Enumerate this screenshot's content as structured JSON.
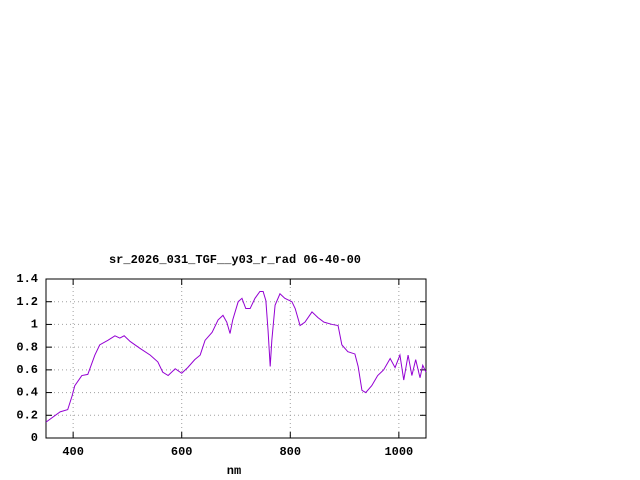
{
  "chart_data": {
    "type": "line",
    "title": "sr_2026_031_TGF__y03_r_rad 06-40-00",
    "x_label": "nm",
    "x": [
      350,
      376,
      390,
      398,
      403,
      416,
      427,
      440,
      449,
      464,
      477,
      486,
      494,
      505,
      523,
      542,
      556,
      565,
      575,
      588,
      600,
      611,
      624,
      634,
      643,
      656,
      667,
      676,
      683,
      689,
      694,
      704,
      711,
      718,
      726,
      735,
      744,
      750,
      755,
      759,
      763,
      766,
      772,
      781,
      790,
      803,
      809,
      818,
      827,
      840,
      851,
      862,
      877,
      888,
      895,
      906,
      919,
      925,
      932,
      939,
      950,
      961,
      972,
      984,
      993,
      1002,
      1009,
      1017,
      1024,
      1031,
      1039,
      1044,
      1050
    ],
    "series": [
      {
        "color": "#9400d3",
        "values": [
          0.14,
          0.23,
          0.25,
          0.37,
          0.46,
          0.55,
          0.56,
          0.73,
          0.82,
          0.86,
          0.9,
          0.88,
          0.9,
          0.85,
          0.79,
          0.73,
          0.67,
          0.58,
          0.55,
          0.61,
          0.57,
          0.62,
          0.69,
          0.73,
          0.86,
          0.93,
          1.04,
          1.08,
          1.02,
          0.92,
          1.04,
          1.2,
          1.23,
          1.14,
          1.14,
          1.23,
          1.29,
          1.29,
          1.21,
          0.95,
          0.63,
          0.86,
          1.17,
          1.27,
          1.23,
          1.2,
          1.14,
          0.99,
          1.02,
          1.11,
          1.06,
          1.02,
          1.0,
          0.99,
          0.82,
          0.76,
          0.74,
          0.63,
          0.42,
          0.4,
          0.46,
          0.55,
          0.6,
          0.7,
          0.62,
          0.73,
          0.51,
          0.73,
          0.55,
          0.69,
          0.53,
          0.64,
          0.58
        ]
      }
    ],
    "xlim": [
      350,
      1050
    ],
    "xticks": [
      400,
      600,
      800,
      1000
    ],
    "ylim": [
      0,
      1.4
    ],
    "yticks": [
      0,
      0.2,
      0.4,
      0.6,
      0.8,
      1,
      1.2,
      1.4
    ],
    "grid": true
  }
}
